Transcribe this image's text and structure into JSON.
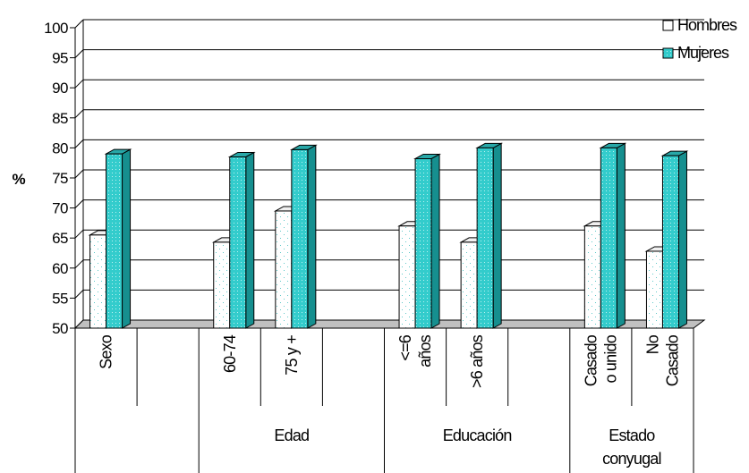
{
  "chart_data": {
    "type": "bar",
    "ylabel": "%",
    "ylim": [
      50,
      100
    ],
    "yticks": [
      50,
      55,
      60,
      65,
      70,
      75,
      80,
      85,
      90,
      95,
      100
    ],
    "grid": true,
    "legend_position": "top-right",
    "categories": [
      "Sexo",
      "",
      "60-74",
      "75 y +",
      "",
      "<=6 años",
      ">6 años",
      "",
      "Casado o unido",
      "No Casado"
    ],
    "category_lines": [
      [
        "Sexo"
      ],
      [],
      [
        "60-74"
      ],
      [
        "75 y +"
      ],
      [],
      [
        "<=6",
        "años"
      ],
      [
        ">6 años"
      ],
      [],
      [
        "Casado",
        "o unido"
      ],
      [
        "No",
        "Casado"
      ]
    ],
    "groups": [
      {
        "label": "",
        "label_lines": [],
        "span": [
          0,
          1
        ]
      },
      {
        "label": "Edad",
        "label_lines": [
          "Edad"
        ],
        "span": [
          2,
          4
        ]
      },
      {
        "label": "Educación",
        "label_lines": [
          "Educación"
        ],
        "span": [
          5,
          7
        ]
      },
      {
        "label": "Estado conyugal",
        "label_lines": [
          "Estado",
          "conyugal"
        ],
        "span": [
          8,
          9
        ]
      }
    ],
    "series": [
      {
        "name": "Hombres",
        "color": "#ffffff",
        "pattern": "dotted-teal",
        "values": [
          65.5,
          null,
          64.3,
          69.5,
          null,
          67.0,
          64.3,
          null,
          67.0,
          62.8
        ]
      },
      {
        "name": "Mujeres",
        "color": "#33cccc",
        "pattern": "fine-dots",
        "values": [
          79.0,
          null,
          78.5,
          79.7,
          null,
          78.2,
          80.0,
          null,
          80.0,
          78.7
        ]
      }
    ]
  }
}
